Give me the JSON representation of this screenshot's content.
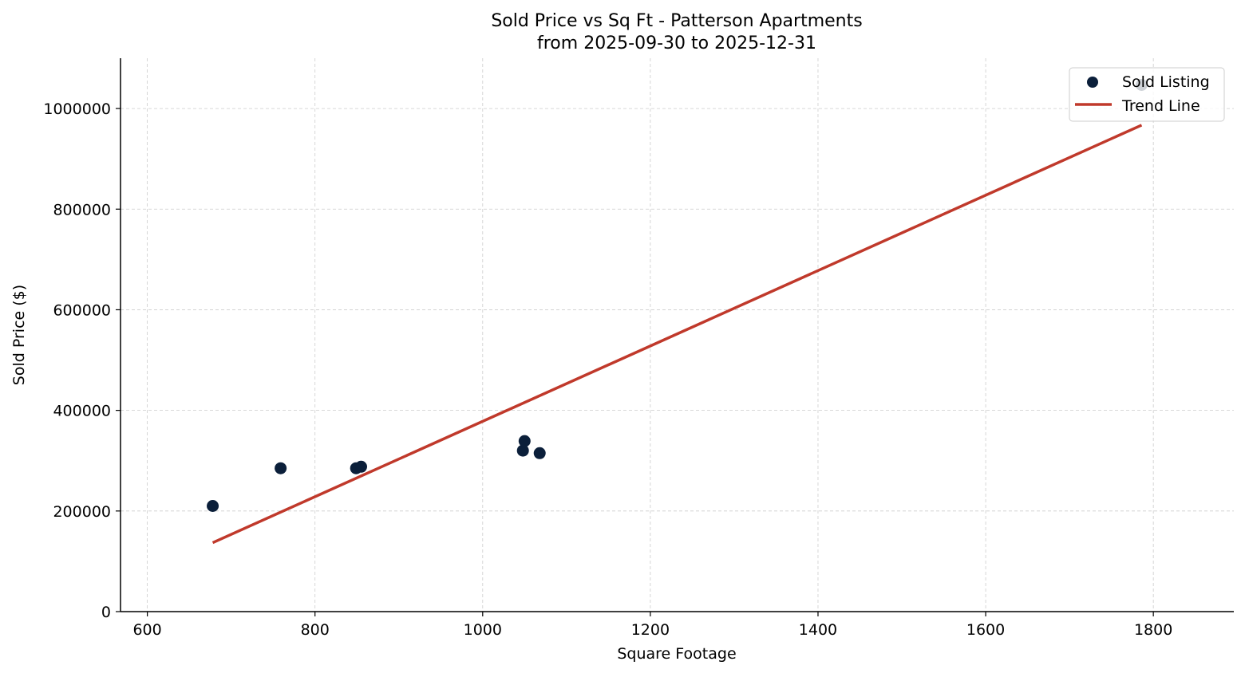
{
  "chart_data": {
    "type": "scatter",
    "title": "Sold Price vs Sq Ft - Patterson Apartments",
    "subtitle": "from 2025-09-30 to 2025-12-31",
    "xlabel": "Square Footage",
    "ylabel": "Sold Price ($)",
    "xlim": [
      568,
      1896
    ],
    "ylim": [
      0,
      1100000
    ],
    "xticks": [
      600,
      800,
      1000,
      1200,
      1400,
      1600,
      1800
    ],
    "yticks": [
      0,
      200000,
      400000,
      600000,
      800000,
      1000000
    ],
    "grid": true,
    "legend_position": "top-right",
    "series": [
      {
        "name": "Sold Listing",
        "kind": "scatter",
        "color": "#0b1f3a",
        "points": [
          {
            "x": 678,
            "y": 210000
          },
          {
            "x": 759,
            "y": 285000
          },
          {
            "x": 849,
            "y": 285000
          },
          {
            "x": 855,
            "y": 288000
          },
          {
            "x": 1048,
            "y": 320000
          },
          {
            "x": 1050,
            "y": 339000
          },
          {
            "x": 1068,
            "y": 315000
          },
          {
            "x": 1786,
            "y": 1047000
          }
        ]
      },
      {
        "name": "Trend Line",
        "kind": "line",
        "color": "#c0392b",
        "points": [
          {
            "x": 678,
            "y": 137000
          },
          {
            "x": 1786,
            "y": 967000
          }
        ]
      }
    ]
  }
}
